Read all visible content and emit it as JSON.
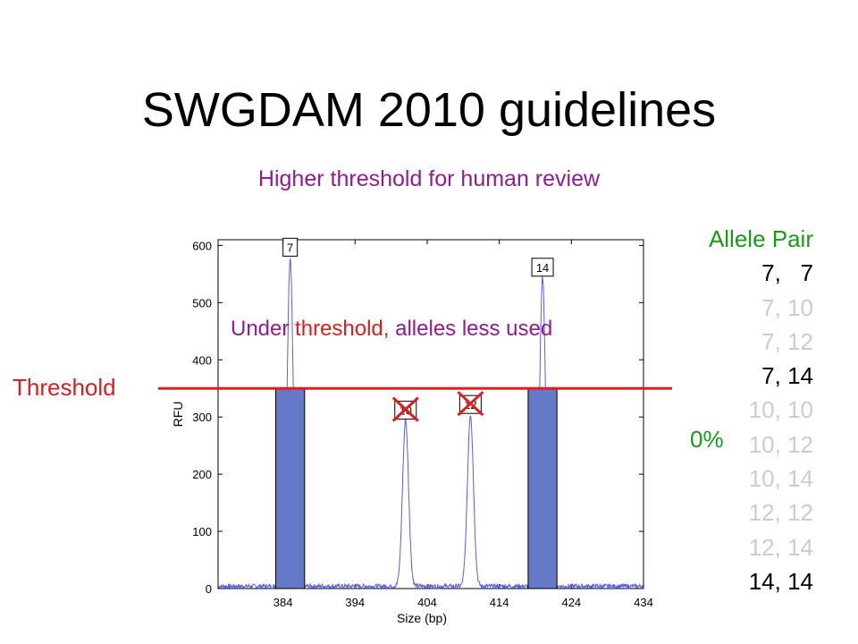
{
  "title": "SWGDAM 2010 guidelines",
  "subtitle": "Higher threshold for human review",
  "annotation": {
    "part1": "Under",
    "part2": "threshold,",
    "part3": "alleles less used"
  },
  "threshold_label": "Threshold",
  "allele_table": {
    "header": "Allele Pair",
    "rows": [
      {
        "pair": "7,   7",
        "faded": false
      },
      {
        "pair": "7, 10",
        "faded": true
      },
      {
        "pair": "7, 12",
        "faded": true
      },
      {
        "pair": "7, 14",
        "faded": false
      },
      {
        "pair": "10, 10",
        "faded": true
      },
      {
        "pair": "10, 12",
        "faded": true
      },
      {
        "pair": "10, 14",
        "faded": true
      },
      {
        "pair": "12, 12",
        "faded": true
      },
      {
        "pair": "12, 14",
        "faded": true
      },
      {
        "pair": "14, 14",
        "faded": false
      }
    ],
    "percent": "0%"
  },
  "colors": {
    "trace": "#5b5be6",
    "bar": "#6679c9",
    "threshold": "#e01e1e",
    "purple": "#8e1d8e",
    "green": "#1a9a1a",
    "faded": "#cccccc"
  },
  "chart_data": {
    "type": "line",
    "xlabel": "Size (bp)",
    "ylabel": "RFU",
    "xlim": [
      375,
      434
    ],
    "ylim": [
      0,
      610
    ],
    "xticks": [
      384,
      394,
      404,
      414,
      424,
      434
    ],
    "yticks": [
      0,
      100,
      200,
      300,
      400,
      500,
      600
    ],
    "threshold": 350,
    "peaks": [
      {
        "allele": "7",
        "x": 385,
        "height": 575,
        "above_threshold": true
      },
      {
        "allele": "10",
        "x": 401,
        "height": 290,
        "above_threshold": false
      },
      {
        "allele": "12",
        "x": 410,
        "height": 300,
        "above_threshold": false
      },
      {
        "allele": "14",
        "x": 420,
        "height": 540,
        "above_threshold": true
      }
    ],
    "threshold_bars": [
      {
        "allele": "7",
        "x_start": 383,
        "x_end": 387,
        "value": 350
      },
      {
        "allele": "14",
        "x_start": 418,
        "x_end": 422,
        "value": 350
      }
    ]
  }
}
